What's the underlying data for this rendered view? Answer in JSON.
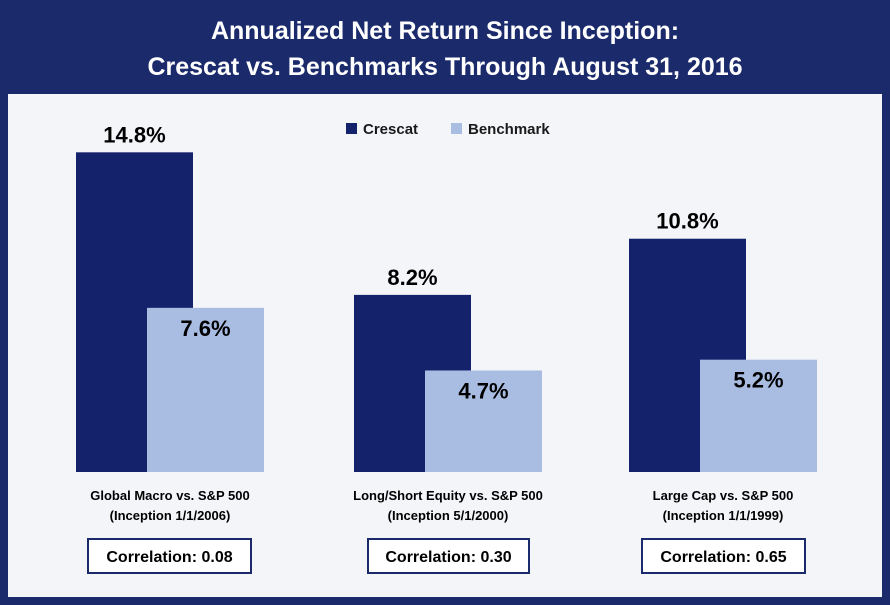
{
  "header": {
    "title_line1": "Annualized Net Return Since Inception:",
    "title_line2": "Crescat vs. Benchmarks Through August 31, 2016"
  },
  "colors": {
    "crescat": "#14216b",
    "benchmark": "#a9bde2",
    "frame": "#1a2a6b"
  },
  "chart_data": {
    "type": "bar",
    "title": "Annualized Net Return Since Inception: Crescat vs. Benchmarks Through August 31, 2016",
    "categories": [
      [
        "Global Macro vs. S&P 500",
        "(Inception 1/1/2006)"
      ],
      [
        "Long/Short Equity vs. S&P 500",
        "(Inception 5/1/2000)"
      ],
      [
        "Large Cap vs. S&P 500",
        "(Inception 1/1/1999)"
      ]
    ],
    "series": [
      {
        "name": "Crescat",
        "values": [
          14.8,
          8.2,
          10.8
        ],
        "labels": [
          "14.8%",
          "8.2%",
          "10.8%"
        ]
      },
      {
        "name": "Benchmark",
        "values": [
          7.6,
          4.7,
          5.2
        ],
        "labels": [
          "7.6%",
          "4.7%",
          "5.2%"
        ]
      }
    ],
    "ylim": [
      0,
      15
    ],
    "grid": false,
    "legend": "top-center"
  },
  "correlations": [
    "Correlation: 0.08",
    "Correlation: 0.30",
    "Correlation: 0.65"
  ]
}
